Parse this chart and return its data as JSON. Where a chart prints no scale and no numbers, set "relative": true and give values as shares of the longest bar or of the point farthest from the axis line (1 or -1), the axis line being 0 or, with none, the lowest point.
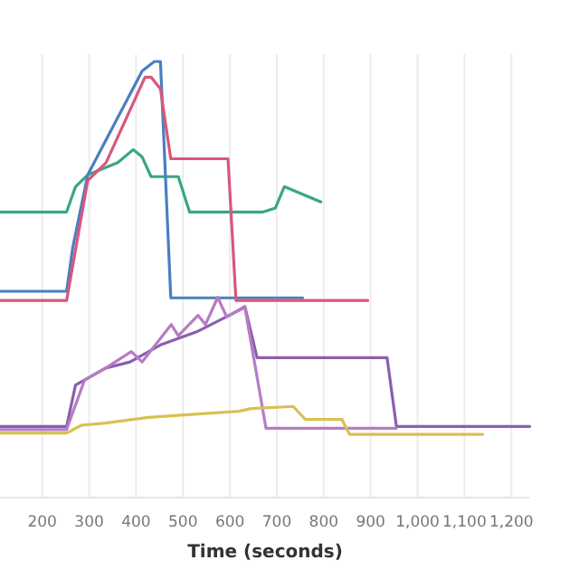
{
  "chart_data": {
    "type": "line",
    "xlabel": "Time (seconds)",
    "relative": true,
    "grid": "x",
    "xlim": [
      110,
      1240
    ],
    "xticks": [
      200,
      300,
      400,
      500,
      600,
      700,
      800,
      900,
      {
        "value": 1000,
        "label": "1,000"
      },
      {
        "value": 1100,
        "label": "1,100"
      },
      {
        "value": 1200,
        "label": "1,200"
      }
    ],
    "series": [
      {
        "color": "#3aa584",
        "x": [
          111,
          252,
          271,
          297,
          361,
          394,
          413,
          432,
          490,
          514,
          671,
          697,
          716,
          794
        ],
        "values": [
          0.655,
          0.655,
          0.713,
          0.74,
          0.768,
          0.798,
          0.781,
          0.736,
          0.736,
          0.655,
          0.655,
          0.664,
          0.713,
          0.678
        ]
      },
      {
        "color": "#4a7fc0",
        "x": [
          111,
          252,
          265,
          297,
          413,
          439,
          452,
          474,
          755
        ],
        "values": [
          0.473,
          0.473,
          0.573,
          0.74,
          0.978,
          1.0,
          1.0,
          0.458,
          0.458
        ]
      },
      {
        "color": "#d9577a",
        "x": [
          111,
          252,
          297,
          336,
          419,
          432,
          452,
          474,
          596,
          613,
          894
        ],
        "values": [
          0.452,
          0.452,
          0.727,
          0.768,
          0.964,
          0.964,
          0.937,
          0.777,
          0.777,
          0.452,
          0.452
        ]
      },
      {
        "color": "#8a5fb0",
        "x": [
          111,
          252,
          271,
          294,
          335,
          387,
          452,
          529,
          606,
          632,
          658,
          935,
          955,
          1239
        ],
        "values": [
          0.163,
          0.163,
          0.258,
          0.272,
          0.297,
          0.311,
          0.35,
          0.38,
          0.422,
          0.438,
          0.321,
          0.321,
          0.163,
          0.163
        ]
      },
      {
        "color": "#b77cc4",
        "x": [
          111,
          252,
          290,
          335,
          390,
          413,
          475,
          490,
          532,
          548,
          574,
          593,
          632,
          677,
          955
        ],
        "values": [
          0.156,
          0.156,
          0.269,
          0.297,
          0.335,
          0.311,
          0.397,
          0.371,
          0.418,
          0.397,
          0.459,
          0.415,
          0.436,
          0.159,
          0.159
        ]
      },
      {
        "color": "#d9c050",
        "x": [
          111,
          252,
          284,
          335,
          426,
          619,
          645,
          735,
          761,
          839,
          855,
          1139
        ],
        "values": [
          0.148,
          0.148,
          0.166,
          0.171,
          0.184,
          0.198,
          0.204,
          0.209,
          0.179,
          0.179,
          0.145,
          0.145
        ]
      }
    ]
  }
}
